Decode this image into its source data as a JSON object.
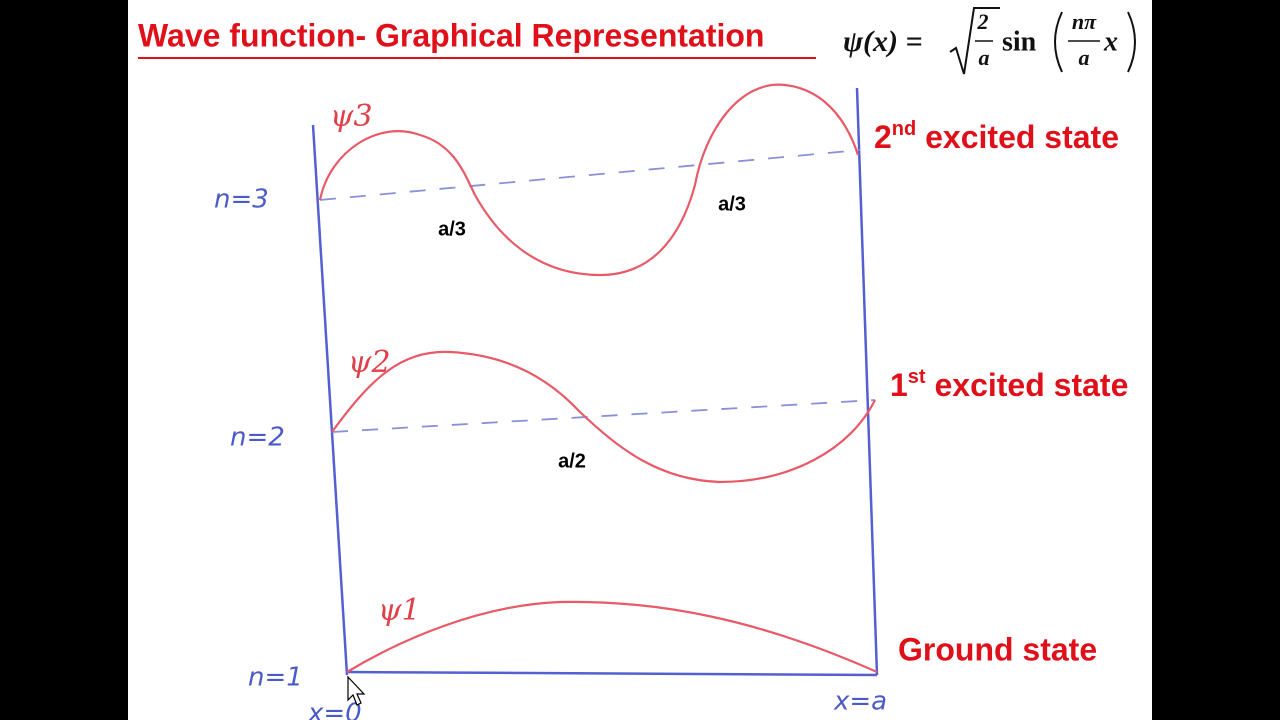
{
  "header": {
    "title": "Wave function- Graphical Representation"
  },
  "formula": {
    "lhs": "ψ(x) =",
    "root_numerator": "2",
    "root_denominator": "a",
    "function": "sin",
    "arg_numerator": "nπ",
    "arg_denominator": "a",
    "arg_variable": "x"
  },
  "states": [
    {
      "number": "2",
      "suffix": "nd",
      "text": " excited state",
      "wave": "ψ3",
      "level": "n=3",
      "nodes": [
        "a/3",
        "a/3"
      ]
    },
    {
      "number": "1",
      "suffix": "st",
      "text": " excited state",
      "wave": "ψ2",
      "level": "n=2",
      "nodes": [
        "a/2"
      ]
    },
    {
      "text": "Ground state",
      "wave": "ψ1",
      "level": "n=1"
    }
  ],
  "axis": {
    "start": "x=0",
    "end": "x=a"
  }
}
